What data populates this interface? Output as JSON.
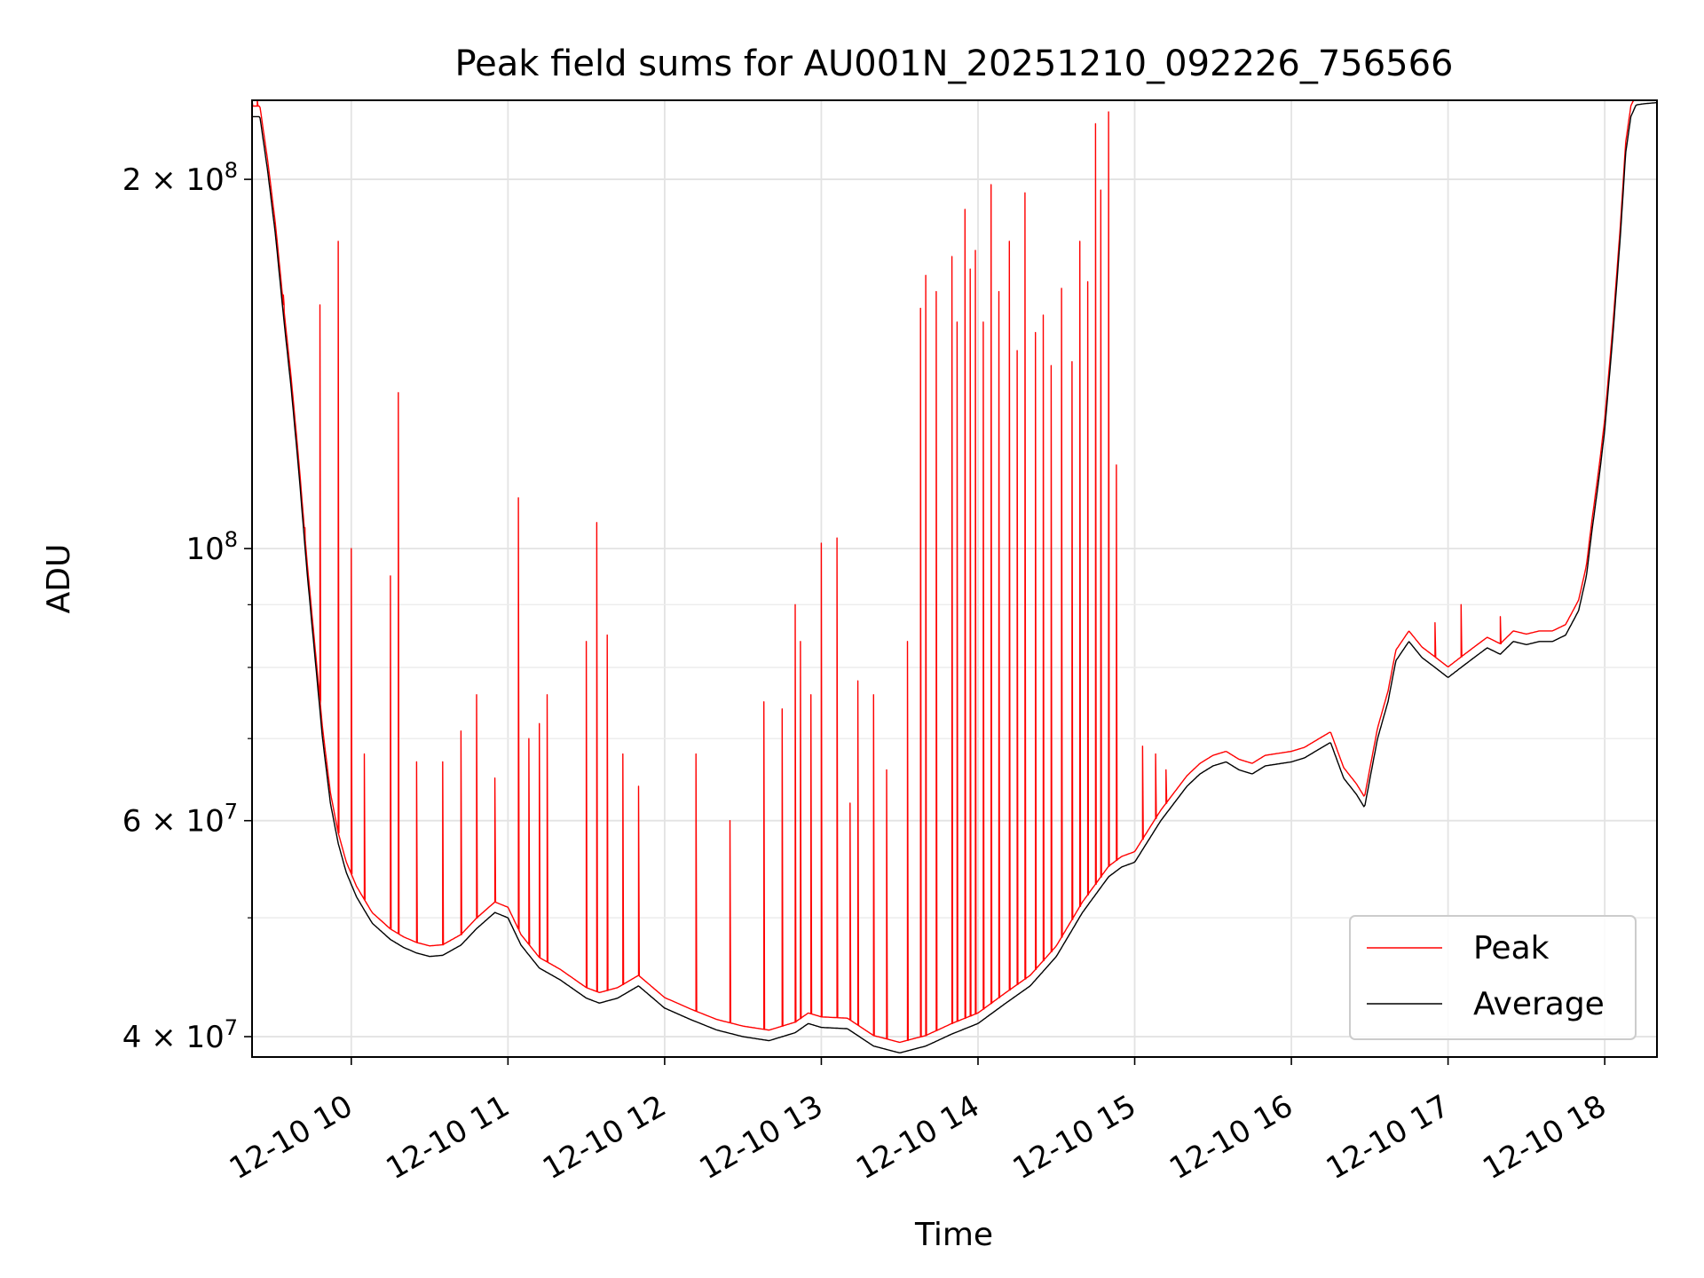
{
  "chart_data": {
    "type": "line",
    "title": "Peak field sums for AU001N_20251210_092226_756566",
    "xlabel": "Time",
    "ylabel": "ADU",
    "yscale": "log",
    "xlim": [
      "2025-12-10T09:22",
      "2025-12-10T18:20"
    ],
    "ylim": [
      38500000,
      232000000
    ],
    "grid": true,
    "legend_position": "lower-right",
    "x_ticks": [
      "2025-12-10T10:00",
      "2025-12-10T11:00",
      "2025-12-10T12:00",
      "2025-12-10T13:00",
      "2025-12-10T14:00",
      "2025-12-10T15:00",
      "2025-12-10T16:00",
      "2025-12-10T17:00",
      "2025-12-10T18:00"
    ],
    "x_tick_labels": [
      "12-10 10",
      "12-10 11",
      "12-10 12",
      "12-10 13",
      "12-10 14",
      "12-10 15",
      "12-10 16",
      "12-10 17",
      "12-10 18"
    ],
    "y_major_ticks": [
      {
        "value": 40000000,
        "mant": "4",
        "exp": "7"
      },
      {
        "value": 60000000,
        "mant": "6",
        "exp": "7"
      },
      {
        "value": 100000000,
        "mant": "",
        "exp": "8"
      },
      {
        "value": 200000000,
        "mant": "2",
        "exp": "8"
      }
    ],
    "y_minor_ticks": [
      50000000,
      70000000,
      80000000,
      90000000,
      300000000
    ],
    "series": [
      {
        "name": "Average",
        "color": "#000000",
        "x": [
          "2025-12-10T09:22",
          "2025-12-10T09:25",
          "2025-12-10T09:28",
          "2025-12-10T09:31",
          "2025-12-10T09:34",
          "2025-12-10T09:37",
          "2025-12-10T09:40",
          "2025-12-10T09:43",
          "2025-12-10T09:46",
          "2025-12-10T09:49",
          "2025-12-10T09:52",
          "2025-12-10T09:55",
          "2025-12-10T09:58",
          "2025-12-10T10:02",
          "2025-12-10T10:08",
          "2025-12-10T10:15",
          "2025-12-10T10:20",
          "2025-12-10T10:25",
          "2025-12-10T10:30",
          "2025-12-10T10:35",
          "2025-12-10T10:42",
          "2025-12-10T10:48",
          "2025-12-10T10:55",
          "2025-12-10T11:00",
          "2025-12-10T11:05",
          "2025-12-10T11:12",
          "2025-12-10T11:20",
          "2025-12-10T11:30",
          "2025-12-10T11:35",
          "2025-12-10T11:42",
          "2025-12-10T11:50",
          "2025-12-10T12:00",
          "2025-12-10T12:10",
          "2025-12-10T12:20",
          "2025-12-10T12:30",
          "2025-12-10T12:40",
          "2025-12-10T12:50",
          "2025-12-10T12:55",
          "2025-12-10T13:00",
          "2025-12-10T13:10",
          "2025-12-10T13:20",
          "2025-12-10T13:30",
          "2025-12-10T13:40",
          "2025-12-10T13:50",
          "2025-12-10T14:00",
          "2025-12-10T14:10",
          "2025-12-10T14:20",
          "2025-12-10T14:30",
          "2025-12-10T14:40",
          "2025-12-10T14:50",
          "2025-12-10T14:55",
          "2025-12-10T15:00",
          "2025-12-10T15:10",
          "2025-12-10T15:20",
          "2025-12-10T15:25",
          "2025-12-10T15:30",
          "2025-12-10T15:35",
          "2025-12-10T15:40",
          "2025-12-10T15:45",
          "2025-12-10T15:50",
          "2025-12-10T16:00",
          "2025-12-10T16:05",
          "2025-12-10T16:10",
          "2025-12-10T16:15",
          "2025-12-10T16:20",
          "2025-12-10T16:25",
          "2025-12-10T16:28",
          "2025-12-10T16:33",
          "2025-12-10T16:37",
          "2025-12-10T16:40",
          "2025-12-10T16:45",
          "2025-12-10T16:50",
          "2025-12-10T16:55",
          "2025-12-10T17:00",
          "2025-12-10T17:05",
          "2025-12-10T17:10",
          "2025-12-10T17:15",
          "2025-12-10T17:20",
          "2025-12-10T17:25",
          "2025-12-10T17:30",
          "2025-12-10T17:35",
          "2025-12-10T17:40",
          "2025-12-10T17:45",
          "2025-12-10T17:50",
          "2025-12-10T17:53",
          "2025-12-10T17:55",
          "2025-12-10T17:58",
          "2025-12-10T18:00",
          "2025-12-10T18:03",
          "2025-12-10T18:06",
          "2025-12-10T18:08",
          "2025-12-10T18:10",
          "2025-12-10T18:12",
          "2025-12-10T18:15",
          "2025-12-10T18:20"
        ],
        "y": [
          225000000,
          225000000,
          203000000,
          180000000,
          155000000,
          135000000,
          115000000,
          96000000,
          82000000,
          70000000,
          62000000,
          57500000,
          54500000,
          52000000,
          49500000,
          48000000,
          47300000,
          46800000,
          46500000,
          46600000,
          47500000,
          49000000,
          50500000,
          50000000,
          47500000,
          45500000,
          44500000,
          43000000,
          42600000,
          43000000,
          44000000,
          42200000,
          41300000,
          40500000,
          40000000,
          39700000,
          40300000,
          41000000,
          40700000,
          40600000,
          39300000,
          38800000,
          39300000,
          40200000,
          41000000,
          42500000,
          44000000,
          46500000,
          50500000,
          54000000,
          55000000,
          55500000,
          60000000,
          64000000,
          65500000,
          66500000,
          67000000,
          66000000,
          65500000,
          66500000,
          67000000,
          67500000,
          68500000,
          69500000,
          65000000,
          63000000,
          61500000,
          70000000,
          75000000,
          81000000,
          84000000,
          81500000,
          80000000,
          78500000,
          80000000,
          81500000,
          83000000,
          82000000,
          84000000,
          83500000,
          84000000,
          84000000,
          85000000,
          89000000,
          95000000,
          103000000,
          115000000,
          125000000,
          148000000,
          180000000,
          210000000,
          225000000,
          230000000,
          230500000,
          231000000
        ]
      },
      {
        "name": "Peak",
        "color": "#ff0000",
        "baseline_of": "Average",
        "spike_x": [
          "2025-12-10T09:22",
          "2025-12-10T09:24",
          "2025-12-10T09:34",
          "2025-12-10T09:42",
          "2025-12-10T09:48",
          "2025-12-10T09:55",
          "2025-12-10T10:00",
          "2025-12-10T10:05",
          "2025-12-10T10:15",
          "2025-12-10T10:18",
          "2025-12-10T10:25",
          "2025-12-10T10:35",
          "2025-12-10T10:42",
          "2025-12-10T10:48",
          "2025-12-10T10:55",
          "2025-12-10T11:04",
          "2025-12-10T11:08",
          "2025-12-10T11:12",
          "2025-12-10T11:15",
          "2025-12-10T11:30",
          "2025-12-10T11:34",
          "2025-12-10T11:38",
          "2025-12-10T11:44",
          "2025-12-10T11:50",
          "2025-12-10T12:12",
          "2025-12-10T12:25",
          "2025-12-10T12:38",
          "2025-12-10T12:45",
          "2025-12-10T12:50",
          "2025-12-10T12:52",
          "2025-12-10T12:56",
          "2025-12-10T13:00",
          "2025-12-10T13:06",
          "2025-12-10T13:11",
          "2025-12-10T13:14",
          "2025-12-10T13:20",
          "2025-12-10T13:25",
          "2025-12-10T13:33",
          "2025-12-10T13:38",
          "2025-12-10T13:40",
          "2025-12-10T13:44",
          "2025-12-10T13:50",
          "2025-12-10T13:52",
          "2025-12-10T13:55",
          "2025-12-10T13:57",
          "2025-12-10T13:59",
          "2025-12-10T14:02",
          "2025-12-10T14:05",
          "2025-12-10T14:08",
          "2025-12-10T14:12",
          "2025-12-10T14:15",
          "2025-12-10T14:18",
          "2025-12-10T14:22",
          "2025-12-10T14:25",
          "2025-12-10T14:28",
          "2025-12-10T14:32",
          "2025-12-10T14:36",
          "2025-12-10T14:39",
          "2025-12-10T14:42",
          "2025-12-10T14:45",
          "2025-12-10T14:47",
          "2025-12-10T14:50",
          "2025-12-10T14:53",
          "2025-12-10T15:03",
          "2025-12-10T15:08",
          "2025-12-10T15:12",
          "2025-12-10T16:55",
          "2025-12-10T17:05",
          "2025-12-10T17:20"
        ],
        "spike_y": [
          232000000,
          232000000,
          161000000,
          104000000,
          158000000,
          178000000,
          100000000,
          68000000,
          95000000,
          134000000,
          67000000,
          67000000,
          71000000,
          76000000,
          65000000,
          110000000,
          70000000,
          72000000,
          76000000,
          84000000,
          105000000,
          85000000,
          68000000,
          64000000,
          68000000,
          60000000,
          75000000,
          74000000,
          90000000,
          84000000,
          76000000,
          101000000,
          102000000,
          62000000,
          78000000,
          76000000,
          66000000,
          84000000,
          157000000,
          167000000,
          162000000,
          173000000,
          153000000,
          189000000,
          169000000,
          175000000,
          153000000,
          198000000,
          162000000,
          178000000,
          145000000,
          195000000,
          150000000,
          155000000,
          141000000,
          163000000,
          142000000,
          178000000,
          165000000,
          222000000,
          196000000,
          227000000,
          117000000,
          69000000,
          68000000,
          66000000,
          87000000,
          90000000,
          88000000
        ]
      }
    ]
  }
}
